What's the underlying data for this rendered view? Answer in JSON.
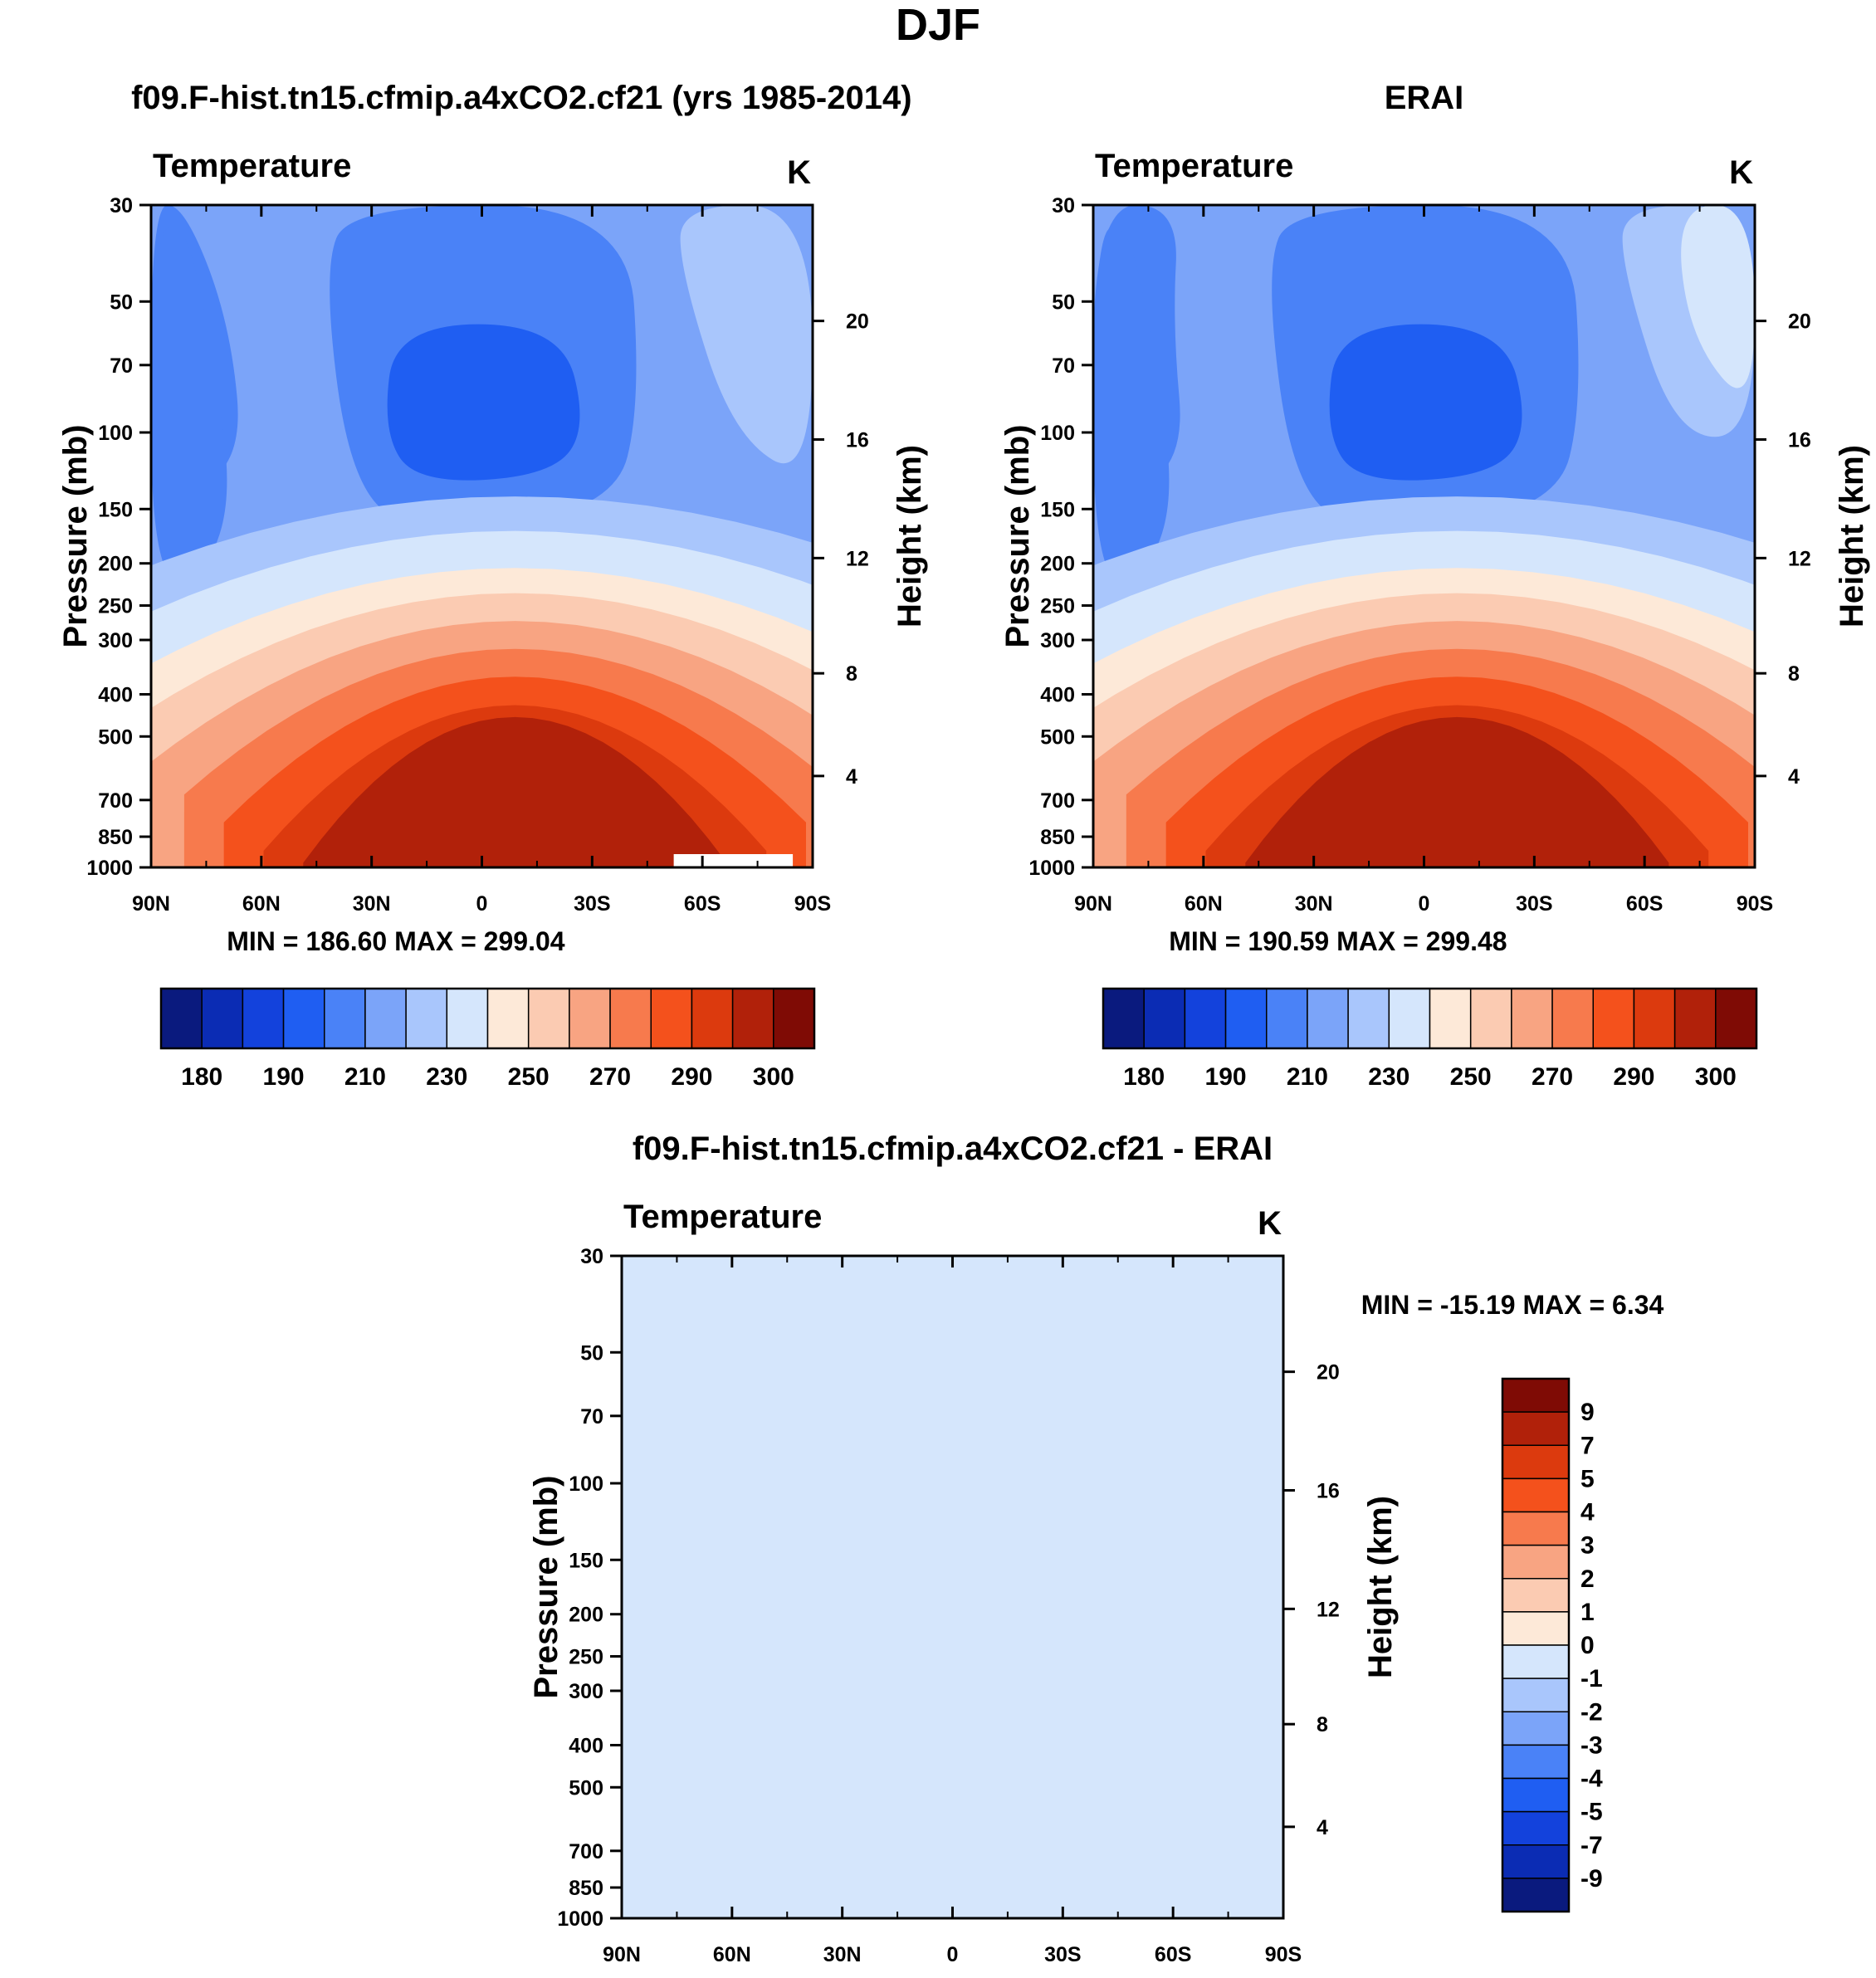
{
  "figure": {
    "title": "DJF"
  },
  "colors": {
    "seasonal": [
      "#0a1a7e",
      "#0b2cb4",
      "#1342dc",
      "#1f5ef2",
      "#4a82f7",
      "#7ba4f9",
      "#a9c6fc",
      "#d5e6fc",
      "#fde9d8",
      "#fbcbb2",
      "#f8a482",
      "#f77a4d",
      "#f4511c",
      "#dc3a0e",
      "#b1210a",
      "#7f0b05"
    ],
    "difference": [
      "#0a1a7e",
      "#0b2cb4",
      "#1342dc",
      "#1f5ef2",
      "#4a82f7",
      "#7ba4f9",
      "#a9c6fc",
      "#d5e6fc",
      "#fde9d8",
      "#fbcbb2",
      "#f8a482",
      "#f77a4d",
      "#f4511c",
      "#dc3a0e",
      "#b1210a",
      "#7f0b05"
    ]
  },
  "chart_data": [
    {
      "type": "contour",
      "id": "model",
      "title": "f09.F-hist.tn15.cfmip.a4xCO2.cf21 (yrs 1985-2014)",
      "left_label": "Temperature",
      "right_label": "K",
      "xlabel": "",
      "ylabel": "Pressure (mb)",
      "y2label": "Height (km)",
      "x_ticks": [
        "90N",
        "60N",
        "30N",
        "0",
        "30S",
        "60S",
        "90S"
      ],
      "y_ticks": [
        30,
        50,
        70,
        100,
        150,
        200,
        250,
        300,
        400,
        500,
        700,
        850,
        1000
      ],
      "y2_ticks": [
        20,
        16,
        12,
        8,
        4
      ],
      "ylim": [
        30,
        1000
      ],
      "minmax": "MIN = 186.60  MAX = 299.04",
      "colorbar_labels": [
        "180",
        "190",
        "210",
        "230",
        "250",
        "270",
        "290",
        "300"
      ]
    },
    {
      "type": "contour",
      "id": "obs",
      "title": "ERAI",
      "left_label": "Temperature",
      "right_label": "K",
      "xlabel": "",
      "ylabel": "Pressure (mb)",
      "y2label": "Height (km)",
      "x_ticks": [
        "90N",
        "60N",
        "30N",
        "0",
        "30S",
        "60S",
        "90S"
      ],
      "y_ticks": [
        30,
        50,
        70,
        100,
        150,
        200,
        250,
        300,
        400,
        500,
        700,
        850,
        1000
      ],
      "y2_ticks": [
        20,
        16,
        12,
        8,
        4
      ],
      "ylim": [
        30,
        1000
      ],
      "minmax": "MIN = 190.59  MAX = 299.48",
      "colorbar_labels": [
        "180",
        "190",
        "210",
        "230",
        "250",
        "270",
        "290",
        "300"
      ]
    },
    {
      "type": "contour",
      "id": "diff",
      "title": "f09.F-hist.tn15.cfmip.a4xCO2.cf21 - ERAI",
      "left_label": "Temperature",
      "right_label": "K",
      "xlabel": "",
      "ylabel": "Pressure (mb)",
      "y2label": "Height (km)",
      "x_ticks": [
        "90N",
        "60N",
        "30N",
        "0",
        "30S",
        "60S",
        "90S"
      ],
      "y_ticks": [
        30,
        50,
        70,
        100,
        150,
        200,
        250,
        300,
        400,
        500,
        700,
        850,
        1000
      ],
      "y2_ticks": [
        20,
        16,
        12,
        8,
        4
      ],
      "ylim": [
        30,
        1000
      ],
      "minmax": "MIN = -15.19  MAX =   6.34",
      "colorbar_labels": [
        "9",
        "7",
        "5",
        "4",
        "3",
        "2",
        "1",
        "0",
        "-1",
        "-2",
        "-3",
        "-4",
        "-5",
        "-7",
        "-9"
      ]
    }
  ]
}
